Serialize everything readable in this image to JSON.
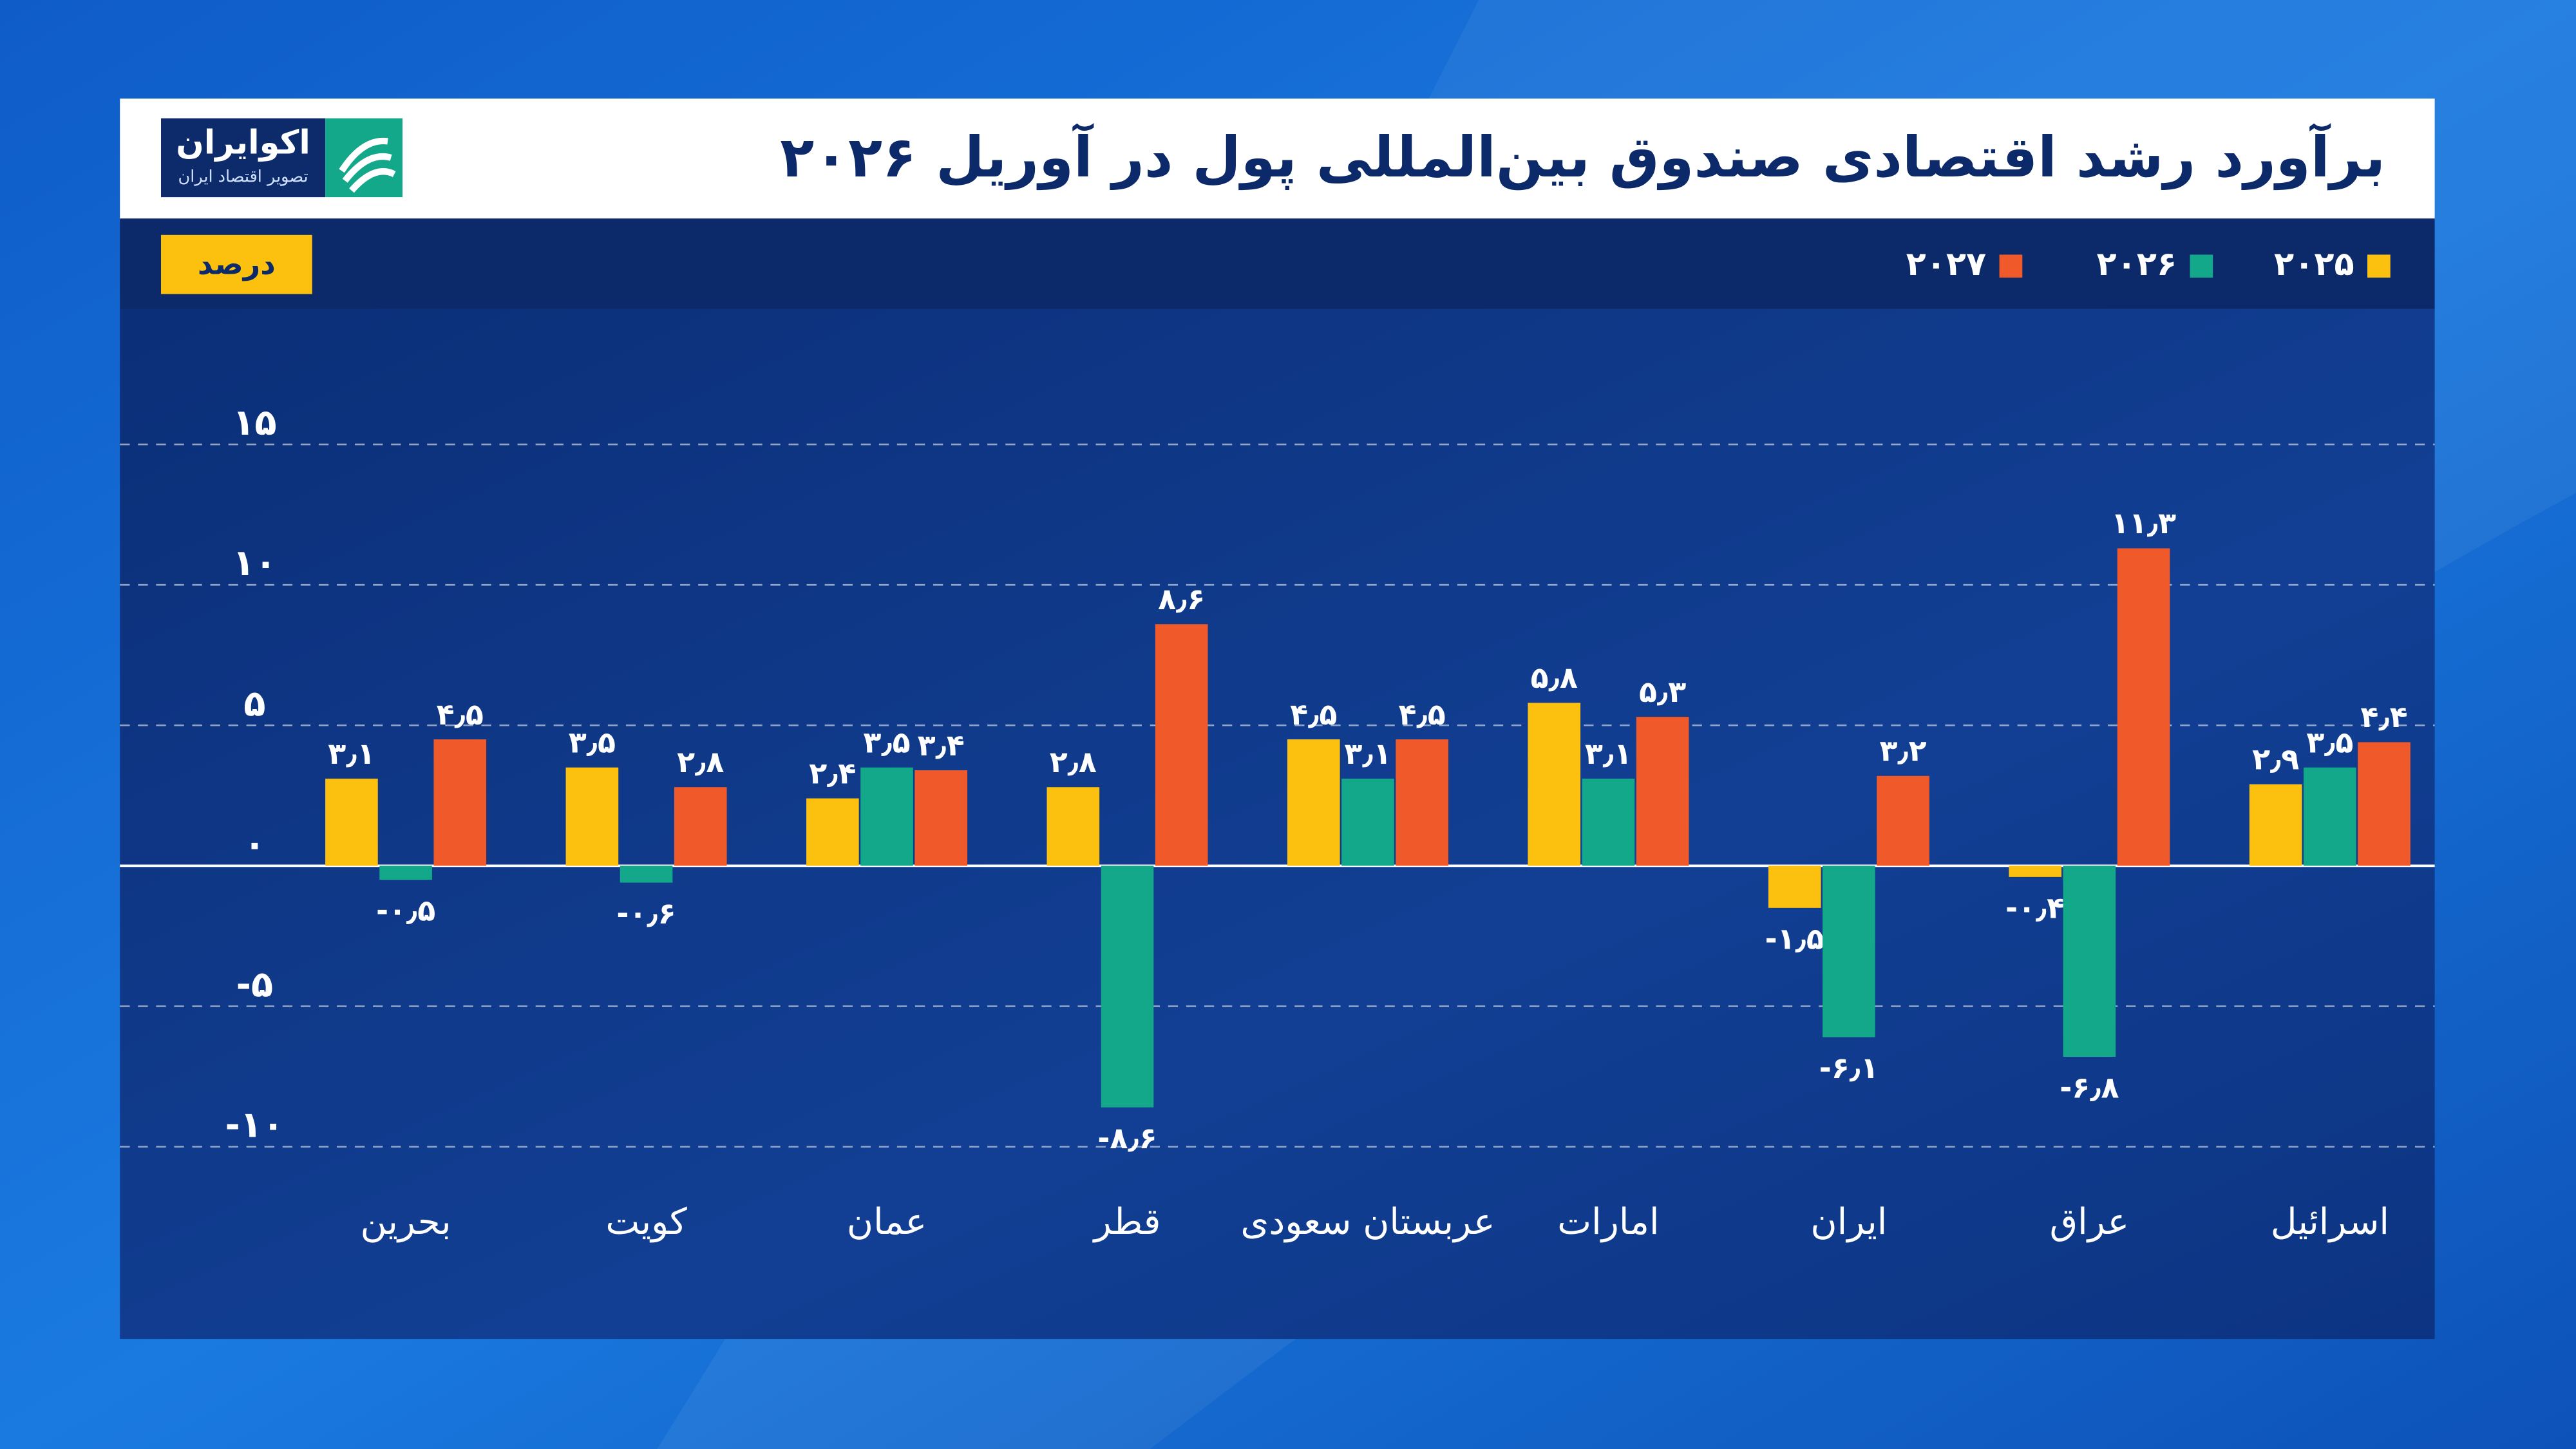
{
  "logo": {
    "name": "اکوایران",
    "tagline": "تصویر اقتصاد ایران"
  },
  "chart_data": {
    "type": "bar",
    "title": "برآورد رشد اقتصادی صندوق بین‌المللی پول در آوریل ۲۰۲۶",
    "y_label": "درصد",
    "categories": [
      "بحرین",
      "کویت",
      "عمان",
      "قطر",
      "عربستان سعودی",
      "امارات",
      "ایران",
      "عراق",
      "اسرائیل"
    ],
    "series": [
      {
        "name": "۲۰۲۵",
        "color": "#fcc10f",
        "values": [
          3.1,
          3.5,
          2.4,
          2.8,
          4.5,
          5.8,
          -1.5,
          -0.4,
          2.9
        ],
        "value_labels": [
          "۳٫۱",
          "۳٫۵",
          "۲٫۴",
          "۲٫۸",
          "۴٫۵",
          "۵٫۸",
          "-۱٫۵",
          "-۰٫۴",
          "۲٫۹"
        ]
      },
      {
        "name": "۲۰۲۶",
        "color": "#13a88a",
        "values": [
          -0.5,
          -0.6,
          3.5,
          -8.6,
          3.1,
          3.1,
          -6.1,
          -6.8,
          3.5
        ],
        "value_labels": [
          "-۰٫۵",
          "-۰٫۶",
          "۳٫۵",
          "-۸٫۶",
          "۳٫۱",
          "۳٫۱",
          "-۶٫۱",
          "-۶٫۸",
          "۳٫۵"
        ]
      },
      {
        "name": "۲۰۲۷",
        "color": "#f05a2a",
        "values": [
          4.5,
          2.8,
          3.4,
          8.6,
          4.5,
          5.3,
          3.2,
          11.3,
          4.4
        ],
        "value_labels": [
          "۴٫۵",
          "۲٫۸",
          "۳٫۴",
          "۸٫۶",
          "۴٫۵",
          "۵٫۳",
          "۳٫۲",
          "۱۱٫۳",
          "۴٫۴"
        ]
      }
    ],
    "ylim": [
      -10,
      15
    ],
    "yticks": [
      {
        "value": -10,
        "label": "-۱۰"
      },
      {
        "value": -5,
        "label": "-۵"
      },
      {
        "value": 0,
        "label": "۰"
      },
      {
        "value": 5,
        "label": "۵"
      },
      {
        "value": 10,
        "label": "۱۰"
      },
      {
        "value": 15,
        "label": "۱۵"
      }
    ],
    "grid": true
  }
}
